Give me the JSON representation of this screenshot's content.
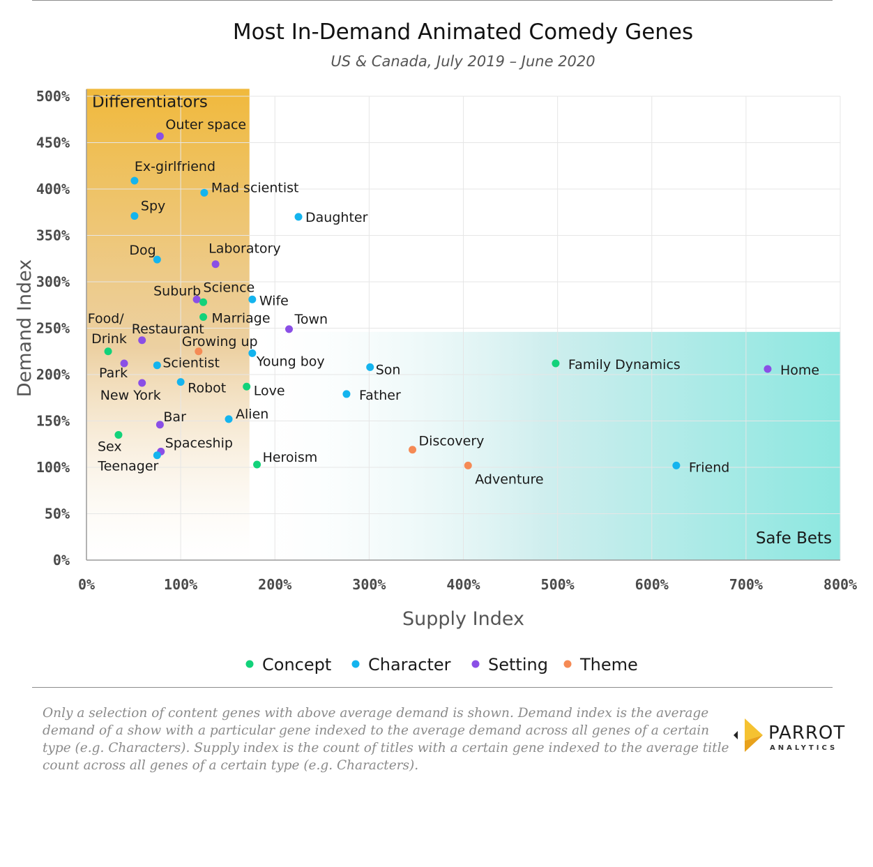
{
  "header": {
    "title": "Most In-Demand Animated Comedy Genes",
    "subtitle": "US & Canada, July 2019 – June 2020"
  },
  "colors": {
    "Concept": "#12d27a",
    "Character": "#14b4ee",
    "Setting": "#8a4fe6",
    "Theme": "#f58a55",
    "differentiators_zone": "#f0b93c",
    "safe_bets_zone": "#8ce7e0"
  },
  "chart_data": {
    "type": "scatter",
    "title": "Most In-Demand Animated Comedy Genes",
    "subtitle": "US & Canada, July 2019 – June 2020",
    "xlabel": "Supply Index",
    "ylabel": "Demand Index",
    "xlim": [
      0,
      800
    ],
    "ylim": [
      0,
      500
    ],
    "xticks": [
      "0%",
      "100%",
      "200%",
      "300%",
      "400%",
      "500%",
      "600%",
      "700%",
      "800%"
    ],
    "yticks": [
      "0%",
      "50%",
      "100%",
      "150%",
      "200%",
      "250%",
      "300%",
      "350%",
      "400%",
      "450%",
      "500%"
    ],
    "grid": true,
    "legend_position": "bottom",
    "legend": [
      "Concept",
      "Character",
      "Setting",
      "Theme"
    ],
    "regions": [
      {
        "label": "Differentiators",
        "x": [
          0,
          173
        ],
        "y": [
          0,
          508
        ]
      },
      {
        "label": "Safe Bets",
        "x": [
          173,
          800
        ],
        "y": [
          0,
          246
        ]
      }
    ],
    "points": [
      {
        "label": "Outer space",
        "type": "Setting",
        "x": 78,
        "y": 457
      },
      {
        "label": "Ex-girlfriend",
        "type": "Character",
        "x": 51,
        "y": 409
      },
      {
        "label": "Mad scientist",
        "type": "Character",
        "x": 125,
        "y": 396
      },
      {
        "label": "Spy",
        "type": "Character",
        "x": 51,
        "y": 371
      },
      {
        "label": "Daughter",
        "type": "Character",
        "x": 225,
        "y": 370
      },
      {
        "label": "Dog",
        "type": "Character",
        "x": 75,
        "y": 324
      },
      {
        "label": "Laboratory",
        "type": "Setting",
        "x": 137,
        "y": 319
      },
      {
        "label": "Suburb",
        "type": "Setting",
        "x": 117,
        "y": 281
      },
      {
        "label": "Science",
        "type": "Concept",
        "x": 124,
        "y": 278
      },
      {
        "label": "Wife",
        "type": "Character",
        "x": 176,
        "y": 281
      },
      {
        "label": "Marriage",
        "type": "Concept",
        "x": 124,
        "y": 262
      },
      {
        "label": "Town",
        "type": "Setting",
        "x": 215,
        "y": 249
      },
      {
        "label": "Food/ Restaurant",
        "type": "Setting",
        "x": 59,
        "y": 237
      },
      {
        "label": "Drink",
        "type": "Concept",
        "x": 23,
        "y": 225
      },
      {
        "label": "Growing up",
        "type": "Theme",
        "x": 119,
        "y": 225
      },
      {
        "label": "Young boy",
        "type": "Character",
        "x": 176,
        "y": 223
      },
      {
        "label": "Park",
        "type": "Setting",
        "x": 40,
        "y": 212
      },
      {
        "label": "Scientist",
        "type": "Character",
        "x": 75,
        "y": 210
      },
      {
        "label": "Son",
        "type": "Character",
        "x": 301,
        "y": 208
      },
      {
        "label": "Family Dynamics",
        "type": "Concept",
        "x": 498,
        "y": 212
      },
      {
        "label": "Home",
        "type": "Setting",
        "x": 723,
        "y": 206
      },
      {
        "label": "New York",
        "type": "Setting",
        "x": 59,
        "y": 191
      },
      {
        "label": "Robot",
        "type": "Character",
        "x": 100,
        "y": 192
      },
      {
        "label": "Love",
        "type": "Concept",
        "x": 170,
        "y": 187
      },
      {
        "label": "Father",
        "type": "Character",
        "x": 276,
        "y": 179
      },
      {
        "label": "Bar",
        "type": "Setting",
        "x": 78,
        "y": 146
      },
      {
        "label": "Alien",
        "type": "Character",
        "x": 151,
        "y": 152
      },
      {
        "label": "Sex",
        "type": "Concept",
        "x": 34,
        "y": 135
      },
      {
        "label": "Spaceship",
        "type": "Setting",
        "x": 79,
        "y": 117
      },
      {
        "label": "Teenager",
        "type": "Character",
        "x": 75,
        "y": 113
      },
      {
        "label": "Discovery",
        "type": "Theme",
        "x": 346,
        "y": 119
      },
      {
        "label": "Heroism",
        "type": "Concept",
        "x": 181,
        "y": 103
      },
      {
        "label": "Adventure",
        "type": "Theme",
        "x": 405,
        "y": 102
      },
      {
        "label": "Friend",
        "type": "Character",
        "x": 626,
        "y": 102
      }
    ]
  },
  "footnote": "Only a selection of content genes with above average demand is shown.  Demand index is the average demand of a show with a particular gene indexed to the average demand across all genes of a certain type (e.g. Characters).  Supply index is the count of titles with a certain gene indexed to the average title count across all genes of a certain type (e.g. Characters).",
  "logo": {
    "word": "PARROT",
    "sub": "ANALYTICS"
  }
}
